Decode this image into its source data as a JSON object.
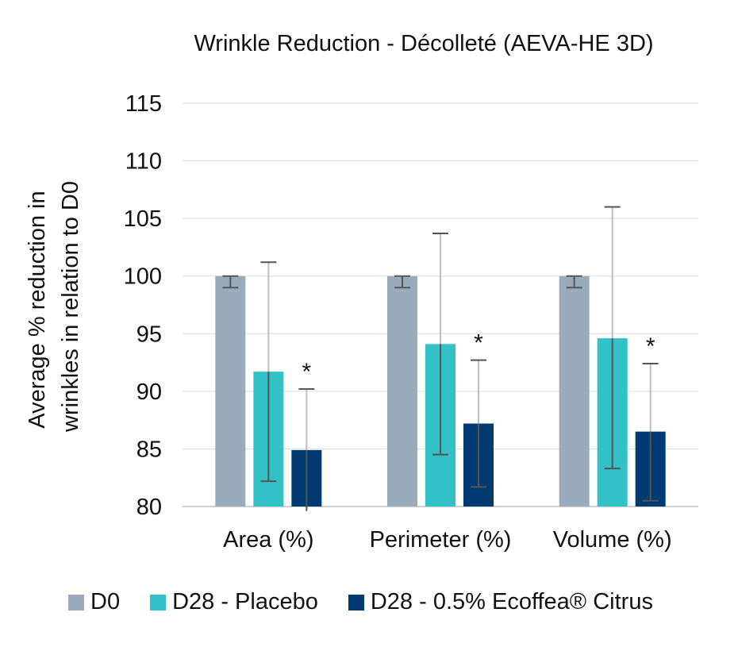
{
  "chart_data": {
    "type": "bar",
    "title": "Wrinkle Reduction - Décolleté (AEVA-HE 3D)",
    "xlabel": "",
    "ylabel_lines": [
      "Average % reduction in",
      "wrinkles in relation to D0"
    ],
    "ylim": [
      80,
      115
    ],
    "yticks": [
      80,
      85,
      90,
      95,
      100,
      105,
      110,
      115
    ],
    "grid": true,
    "legend_position": "bottom",
    "categories": [
      "Area (%)",
      "Perimeter (%)",
      "Volume (%)"
    ],
    "series": [
      {
        "name": "D0",
        "color": "#9aacbc",
        "values": [
          100,
          100,
          100
        ],
        "error_low": [
          99,
          99,
          99
        ],
        "error_high": [
          100,
          100,
          100
        ],
        "significance": [
          "",
          "",
          ""
        ]
      },
      {
        "name": "D28 - Placebo",
        "color": "#33c1c8",
        "values": [
          91.7,
          94.1,
          94.6
        ],
        "error_low": [
          82.2,
          84.5,
          83.3
        ],
        "error_high": [
          101.2,
          103.7,
          106.0
        ],
        "significance": [
          "",
          "",
          ""
        ]
      },
      {
        "name": "D28 - 0.5% Ecoffea® Citrus",
        "color": "#003a70",
        "values": [
          84.9,
          87.2,
          86.5
        ],
        "error_low": [
          79.6,
          81.7,
          80.5
        ],
        "error_high": [
          90.2,
          92.7,
          92.4
        ],
        "significance": [
          "*",
          "*",
          "*"
        ]
      }
    ]
  }
}
